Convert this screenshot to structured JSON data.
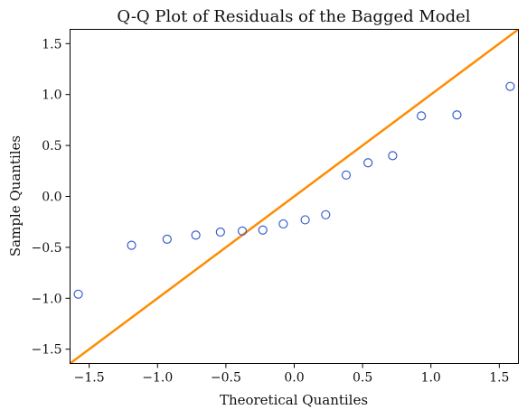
{
  "chart_data": {
    "type": "scatter",
    "title": "Q-Q Plot of Residuals of the Bagged Model",
    "xlabel": "Theoretical Quantiles",
    "ylabel": "Sample Quantiles",
    "xlim": [
      -1.64,
      1.64
    ],
    "ylim": [
      -1.64,
      1.64
    ],
    "xticks": [
      -1.5,
      -1.0,
      -0.5,
      0.0,
      0.5,
      1.0,
      1.5
    ],
    "yticks": [
      -1.5,
      -1.0,
      -0.5,
      0.0,
      0.5,
      1.0,
      1.5
    ],
    "xtick_labels": [
      "−1.5",
      "−1.0",
      "−0.5",
      "0.0",
      "0.5",
      "1.0",
      "1.5"
    ],
    "ytick_labels": [
      "−1.5",
      "−1.0",
      "−0.5",
      "0.0",
      "0.5",
      "1.0",
      "1.5"
    ],
    "grid": false,
    "series": [
      {
        "x": [
          -1.58,
          -1.19,
          -0.93,
          -0.72,
          -0.54,
          -0.38,
          -0.23,
          -0.08,
          0.08,
          0.23,
          0.38,
          0.54,
          0.72,
          0.93,
          1.19,
          1.58
        ],
        "y": [
          -0.96,
          -0.48,
          -0.42,
          -0.38,
          -0.35,
          -0.34,
          -0.33,
          -0.27,
          -0.23,
          -0.18,
          0.21,
          0.33,
          0.4,
          0.79,
          0.8,
          1.08
        ],
        "marker": "open-circle",
        "color": "#3a5fcd"
      }
    ],
    "reference_line": {
      "slope": 1,
      "intercept": 0,
      "color": "#ff8c00"
    }
  }
}
